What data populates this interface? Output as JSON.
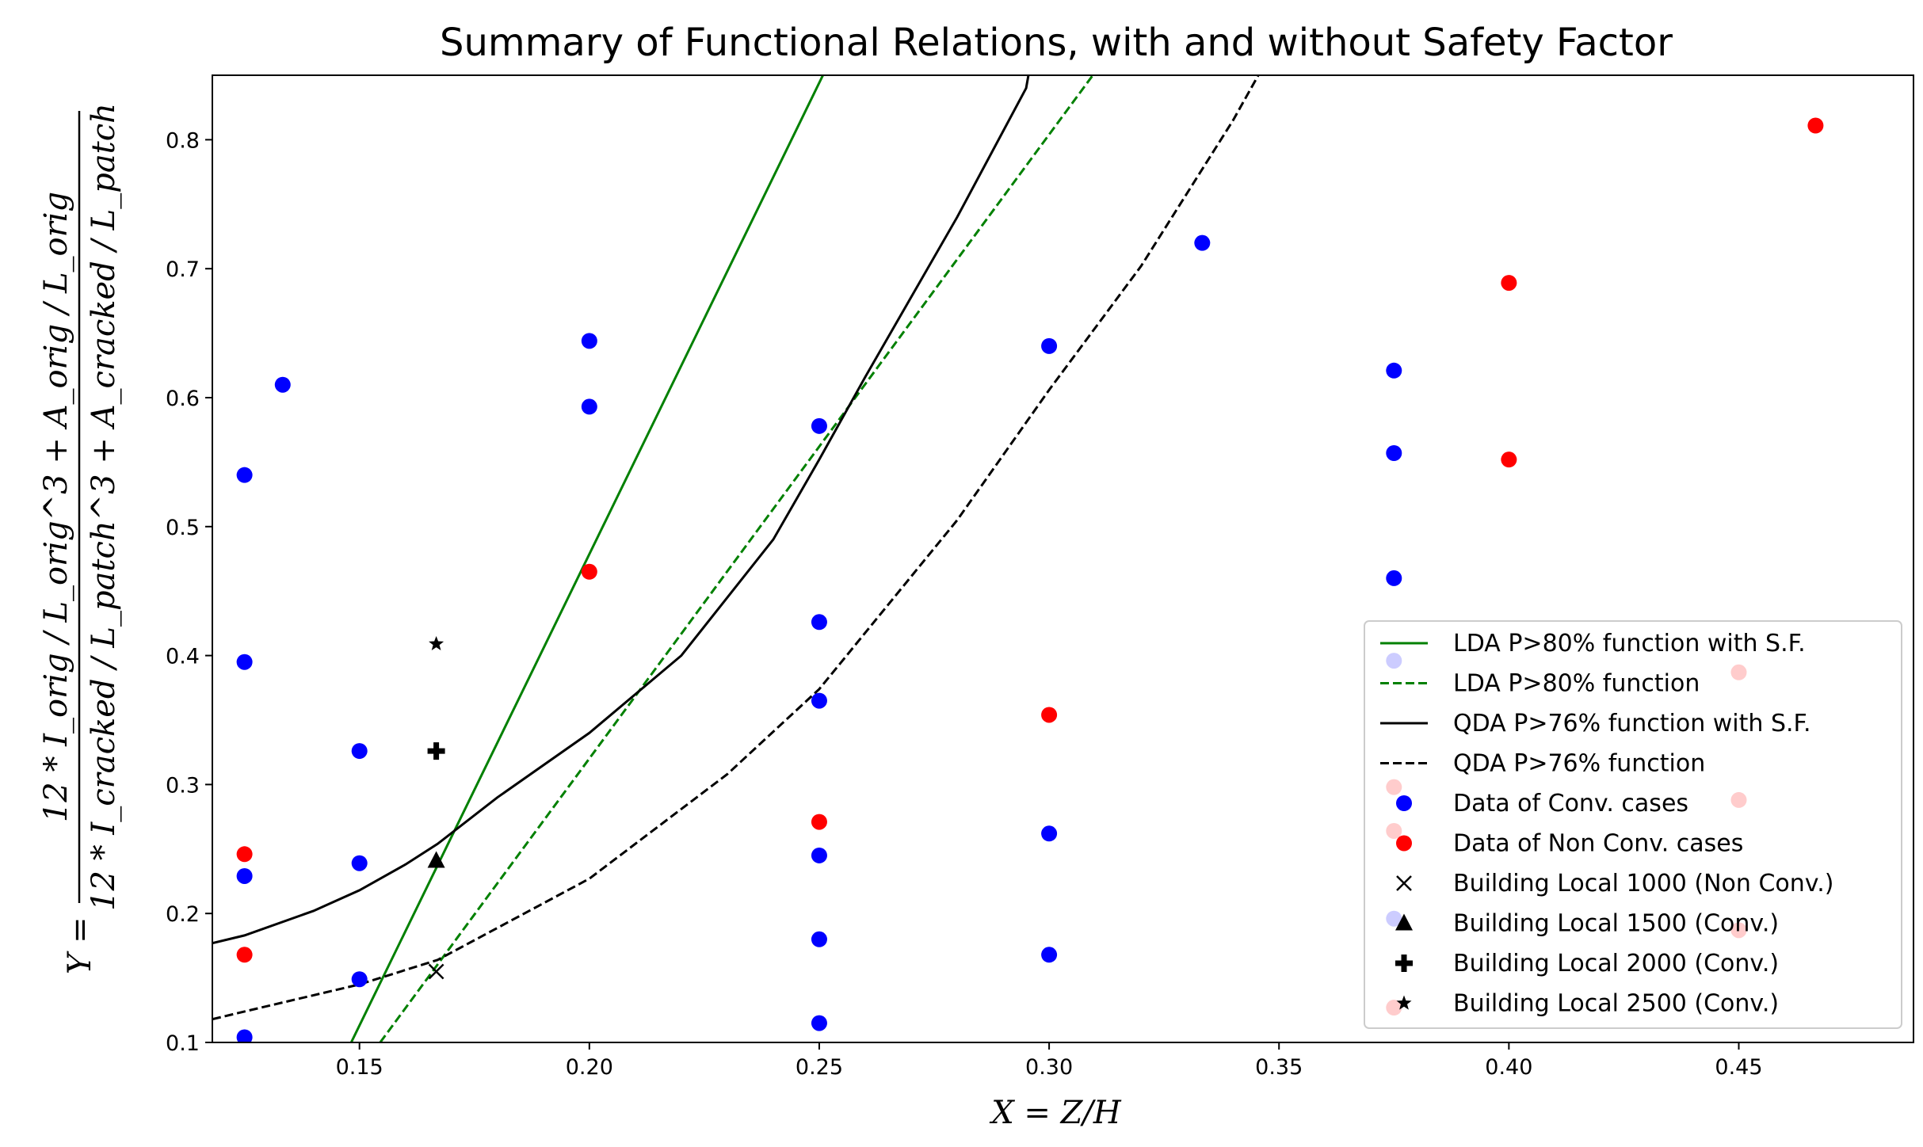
{
  "chart_data": {
    "type": "scatter",
    "title": "Summary of Functional Relations, with and without Safety Factor",
    "xlabel": "X = Z/H",
    "ylabel": {
      "prefix": "Y =",
      "numerator": "12 * I_orig / L_orig^3 + A_orig / L_orig",
      "denominator": "12 * I_cracked / L_patch^3 + A_cracked / L_patch"
    },
    "xlim": [
      0.118,
      0.488
    ],
    "ylim": [
      0.1,
      0.85
    ],
    "xticks": [
      0.15,
      0.2,
      0.25,
      0.3,
      0.35,
      0.4,
      0.45
    ],
    "xtick_labels": [
      "0.15",
      "0.20",
      "0.25",
      "0.30",
      "0.35",
      "0.40",
      "0.45"
    ],
    "yticks": [
      0.1,
      0.2,
      0.3,
      0.4,
      0.5,
      0.6,
      0.7,
      0.8
    ],
    "ytick_labels": [
      "0.1",
      "0.2",
      "0.3",
      "0.4",
      "0.5",
      "0.6",
      "0.7",
      "0.8"
    ],
    "grid": false,
    "legend_position": "lower-right",
    "colors": {
      "lda": "#008000",
      "qda": "#000000",
      "conv": "#0000ff",
      "nonconv": "#ff0000",
      "marker": "#000000"
    },
    "series": [
      {
        "name": "LDA P>80% function with S.F.",
        "kind": "line",
        "style": "solid",
        "color": "#008000",
        "x": [
          0.1482,
          0.2508
        ],
        "y": [
          0.1,
          0.85
        ]
      },
      {
        "name": "LDA P>80% function",
        "kind": "line",
        "style": "dashed",
        "color": "#008000",
        "x": [
          0.1545,
          0.3095
        ],
        "y": [
          0.1,
          0.85
        ]
      },
      {
        "name": "QDA P>76% function with S.F.",
        "kind": "line",
        "style": "solid",
        "color": "#000000",
        "x": [
          0.118,
          0.125,
          0.14,
          0.15,
          0.16,
          0.167,
          0.18,
          0.2,
          0.22,
          0.24,
          0.25,
          0.26,
          0.28,
          0.295,
          0.2955
        ],
        "y": [
          0.177,
          0.183,
          0.202,
          0.218,
          0.238,
          0.254,
          0.29,
          0.34,
          0.4,
          0.49,
          0.552,
          0.616,
          0.74,
          0.84,
          0.85
        ]
      },
      {
        "name": "QDA P>76% function",
        "kind": "line",
        "style": "dashed",
        "color": "#000000",
        "x": [
          0.118,
          0.125,
          0.15,
          0.167,
          0.2,
          0.23,
          0.25,
          0.28,
          0.3,
          0.32,
          0.34,
          0.3455
        ],
        "y": [
          0.118,
          0.124,
          0.145,
          0.164,
          0.227,
          0.308,
          0.374,
          0.505,
          0.606,
          0.702,
          0.815,
          0.85
        ]
      },
      {
        "name": "Data of Conv. cases",
        "kind": "points",
        "marker": "circle",
        "color": "#0000ff",
        "x": [
          0.125,
          0.125,
          0.125,
          0.125,
          0.1333,
          0.15,
          0.15,
          0.15,
          0.2,
          0.2,
          0.25,
          0.25,
          0.25,
          0.25,
          0.25,
          0.25,
          0.3,
          0.3,
          0.3,
          0.3333,
          0.375,
          0.375,
          0.375,
          0.375,
          0.375
        ],
        "y": [
          0.104,
          0.229,
          0.395,
          0.54,
          0.61,
          0.149,
          0.239,
          0.326,
          0.593,
          0.644,
          0.115,
          0.18,
          0.245,
          0.365,
          0.426,
          0.578,
          0.168,
          0.262,
          0.64,
          0.72,
          0.196,
          0.396,
          0.46,
          0.557,
          0.621
        ]
      },
      {
        "name": "Data of Non Conv. cases",
        "kind": "points",
        "marker": "circle",
        "color": "#ff0000",
        "x": [
          0.125,
          0.125,
          0.2,
          0.25,
          0.3,
          0.375,
          0.375,
          0.375,
          0.4,
          0.4,
          0.45,
          0.45,
          0.45,
          0.4667
        ],
        "y": [
          0.168,
          0.246,
          0.465,
          0.271,
          0.354,
          0.127,
          0.264,
          0.298,
          0.552,
          0.689,
          0.187,
          0.288,
          0.387,
          0.811
        ]
      },
      {
        "name": "Building Local 1000 (Non Conv.)",
        "kind": "points",
        "marker": "x",
        "color": "#000000",
        "x": [
          0.1667
        ],
        "y": [
          0.155
        ]
      },
      {
        "name": "Building Local 1500 (Conv.)",
        "kind": "points",
        "marker": "triangle",
        "color": "#000000",
        "x": [
          0.1667
        ],
        "y": [
          0.241
        ]
      },
      {
        "name": "Building Local 2000 (Conv.)",
        "kind": "points",
        "marker": "plus",
        "color": "#000000",
        "x": [
          0.1667
        ],
        "y": [
          0.326
        ]
      },
      {
        "name": "Building Local 2500 (Conv.)",
        "kind": "points",
        "marker": "star",
        "color": "#000000",
        "x": [
          0.1667
        ],
        "y": [
          0.409
        ]
      }
    ]
  }
}
